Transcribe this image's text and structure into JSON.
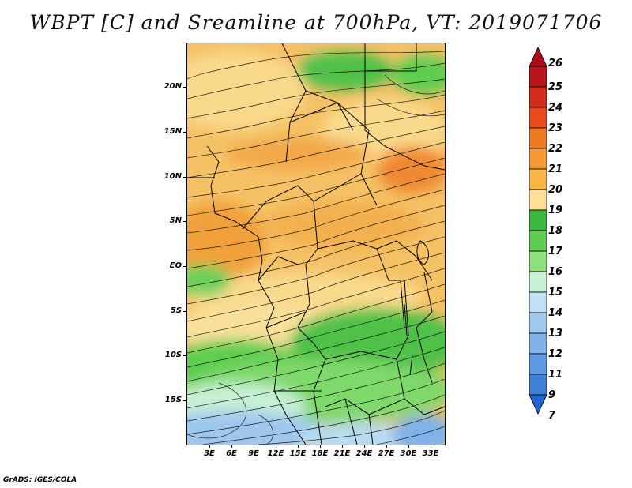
{
  "title": "WBPT [C] and Sreamline at 700hPa, VT: 2019071706",
  "footer": "GrADS: IGES/COLA",
  "map": {
    "lat_labels": [
      "20N",
      "15N",
      "10N",
      "5N",
      "EQ",
      "5S",
      "10S",
      "15S"
    ],
    "lon_labels": [
      "3E",
      "6E",
      "9E",
      "12E",
      "15E",
      "18E",
      "21E",
      "24E",
      "27E",
      "30E",
      "33E"
    ]
  },
  "colorbar": {
    "labels": [
      "26",
      "25",
      "24",
      "23",
      "22",
      "21",
      "20",
      "19",
      "18",
      "17",
      "16",
      "15",
      "14",
      "13",
      "12",
      "11",
      "9",
      "7"
    ],
    "colors": [
      "#a50f15",
      "#b8141a",
      "#d42a1c",
      "#e84a1a",
      "#f07a22",
      "#f59a30",
      "#f9b548",
      "#fde093",
      "#3cb83c",
      "#5fcd50",
      "#8ee07a",
      "#c8f0d4",
      "#c0e0f5",
      "#a0c8ef",
      "#7fb2ea",
      "#5c9ae2",
      "#3c80d8",
      "#2266d0"
    ]
  }
}
